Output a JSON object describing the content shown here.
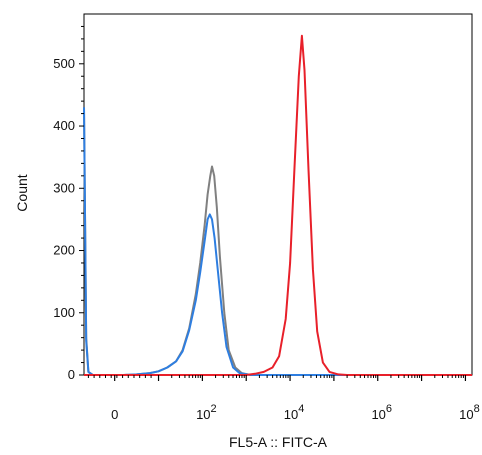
{
  "chart_data": {
    "type": "line",
    "title": "",
    "xlabel": "FL5-A :: FITC-A",
    "ylabel": "Count",
    "x_scale": "biexponential",
    "xlim_exponent": [
      -0.7,
      8.15
    ],
    "ylim": [
      0,
      580
    ],
    "y_ticks": [
      0,
      100,
      200,
      300,
      400,
      500
    ],
    "y_tick_labels": [
      "0",
      "100",
      "200",
      "300",
      "400",
      "500"
    ],
    "x_ticks": [
      {
        "base": "0",
        "exp": "",
        "at": 0
      },
      {
        "base": "10",
        "exp": "2",
        "at": 2
      },
      {
        "base": "10",
        "exp": "4",
        "at": 4
      },
      {
        "base": "10",
        "exp": "6",
        "at": 6
      },
      {
        "base": "10",
        "exp": "8",
        "at": 8
      }
    ],
    "legend": "none",
    "grid": false,
    "series": [
      {
        "color": "#808080",
        "points": [
          [
            -0.7,
            430
          ],
          [
            -0.65,
            60
          ],
          [
            -0.6,
            5
          ],
          [
            -0.5,
            0
          ],
          [
            0.2,
            0
          ],
          [
            0.5,
            1
          ],
          [
            0.8,
            3
          ],
          [
            1.0,
            6
          ],
          [
            1.2,
            12
          ],
          [
            1.4,
            22
          ],
          [
            1.55,
            40
          ],
          [
            1.7,
            75
          ],
          [
            1.85,
            130
          ],
          [
            1.95,
            180
          ],
          [
            2.05,
            240
          ],
          [
            2.12,
            290
          ],
          [
            2.18,
            320
          ],
          [
            2.22,
            335
          ],
          [
            2.27,
            320
          ],
          [
            2.33,
            270
          ],
          [
            2.4,
            190
          ],
          [
            2.5,
            100
          ],
          [
            2.6,
            40
          ],
          [
            2.75,
            12
          ],
          [
            2.9,
            3
          ],
          [
            3.1,
            0
          ],
          [
            8.15,
            0
          ]
        ]
      },
      {
        "color": "#2e7ee0",
        "points": [
          [
            -0.7,
            430
          ],
          [
            -0.65,
            55
          ],
          [
            -0.6,
            5
          ],
          [
            -0.5,
            0
          ],
          [
            0.2,
            0
          ],
          [
            0.5,
            1
          ],
          [
            0.8,
            3
          ],
          [
            1.0,
            6
          ],
          [
            1.2,
            12
          ],
          [
            1.4,
            22
          ],
          [
            1.55,
            38
          ],
          [
            1.7,
            72
          ],
          [
            1.85,
            120
          ],
          [
            1.95,
            165
          ],
          [
            2.05,
            215
          ],
          [
            2.12,
            250
          ],
          [
            2.17,
            258
          ],
          [
            2.22,
            250
          ],
          [
            2.28,
            220
          ],
          [
            2.35,
            170
          ],
          [
            2.45,
            100
          ],
          [
            2.55,
            45
          ],
          [
            2.7,
            12
          ],
          [
            2.85,
            3
          ],
          [
            3.1,
            0
          ],
          [
            8.15,
            0
          ]
        ]
      },
      {
        "color": "#e8202a",
        "points": [
          [
            -0.7,
            0
          ],
          [
            3.0,
            0
          ],
          [
            3.2,
            2
          ],
          [
            3.4,
            5
          ],
          [
            3.6,
            12
          ],
          [
            3.75,
            30
          ],
          [
            3.9,
            90
          ],
          [
            4.0,
            180
          ],
          [
            4.1,
            330
          ],
          [
            4.2,
            480
          ],
          [
            4.27,
            545
          ],
          [
            4.33,
            490
          ],
          [
            4.42,
            330
          ],
          [
            4.52,
            170
          ],
          [
            4.62,
            70
          ],
          [
            4.75,
            20
          ],
          [
            4.9,
            5
          ],
          [
            5.1,
            1
          ],
          [
            5.3,
            0
          ],
          [
            8.15,
            0
          ]
        ]
      }
    ]
  }
}
